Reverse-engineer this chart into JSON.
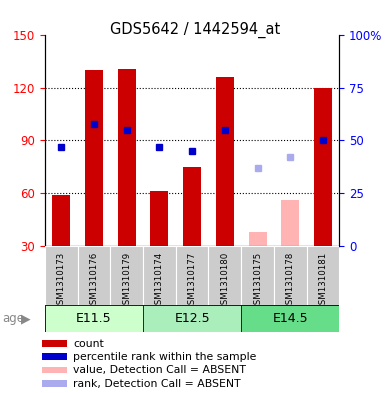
{
  "title": "GDS5642 / 1442594_at",
  "samples": [
    "GSM1310173",
    "GSM1310176",
    "GSM1310179",
    "GSM1310174",
    "GSM1310177",
    "GSM1310180",
    "GSM1310175",
    "GSM1310178",
    "GSM1310181"
  ],
  "age_groups": [
    {
      "label": "E11.5"
    },
    {
      "label": "E12.5"
    },
    {
      "label": "E14.5"
    }
  ],
  "count_values": [
    59,
    130,
    131,
    61,
    75,
    126,
    null,
    null,
    120
  ],
  "count_absent_values": [
    null,
    null,
    null,
    null,
    null,
    null,
    38,
    56,
    null
  ],
  "rank_values": [
    47,
    58,
    55,
    47,
    45,
    55,
    null,
    null,
    50
  ],
  "rank_absent_values": [
    null,
    null,
    null,
    null,
    null,
    null,
    37,
    42,
    null
  ],
  "ylim_left": [
    30,
    150
  ],
  "ylim_right": [
    0,
    100
  ],
  "yticks_left": [
    30,
    60,
    90,
    120,
    150
  ],
  "yticks_right": [
    0,
    25,
    50,
    75,
    100
  ],
  "bar_color": "#cc0000",
  "bar_absent_color": "#ffb3b3",
  "rank_color": "#0000cc",
  "rank_absent_color": "#aaaaee",
  "grid_color": "#000000",
  "age_bg_e115": "#ccffcc",
  "age_bg_e125": "#aaeebb",
  "age_bg_e145": "#66dd88",
  "sample_bg": "#cccccc",
  "bar_width": 0.55,
  "figsize": [
    3.9,
    3.93
  ],
  "dpi": 100
}
